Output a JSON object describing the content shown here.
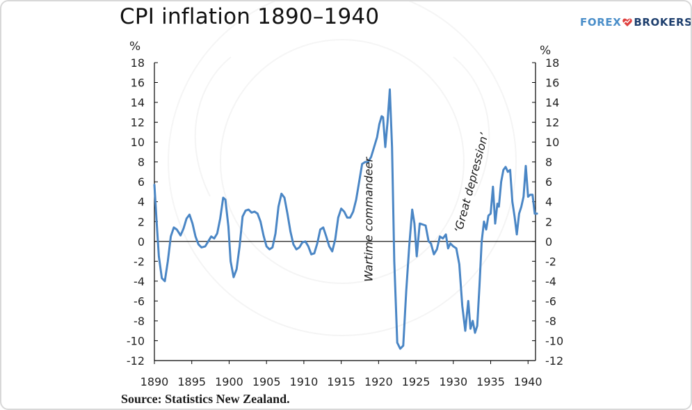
{
  "header": {
    "title": "CPI inflation 1890–1940"
  },
  "logo": {
    "part1": "FOREX",
    "part2": "BROKERS",
    "mark_icon": "heart-chart-icon"
  },
  "footer": {
    "source": "Source: Statistics New Zealand."
  },
  "chart_data": {
    "type": "line",
    "title": "CPI inflation 1890–1940",
    "xlabel": "",
    "ylabel_left": "%",
    "ylabel_right": "%",
    "xlim": [
      1890,
      1941
    ],
    "ylim": [
      -12,
      18
    ],
    "x_ticks": [
      1890,
      1895,
      1900,
      1905,
      1910,
      1915,
      1920,
      1925,
      1930,
      1935,
      1940
    ],
    "y_ticks": [
      -12,
      -10,
      -8,
      -6,
      -4,
      -2,
      0,
      2,
      4,
      6,
      8,
      10,
      12,
      14,
      16,
      18
    ],
    "zero_line": true,
    "grid": false,
    "line_color": "#4a86c5",
    "annotations": [
      {
        "text": "Wartime commandeer",
        "x": 1919.2,
        "y": 2.2,
        "rotation": -90
      },
      {
        "text": "‘Great depression’",
        "x": 1932.9,
        "y": 5.8,
        "rotation": -75
      }
    ],
    "series": [
      {
        "x": [
          1890.0,
          1890.3,
          1890.6,
          1891.0,
          1891.4,
          1891.8,
          1892.2,
          1892.6,
          1893.0,
          1893.5,
          1893.9,
          1894.3,
          1894.7,
          1895.1,
          1895.5,
          1895.9,
          1896.3,
          1896.8,
          1897.2,
          1897.6,
          1898.0,
          1898.4,
          1898.8,
          1899.2,
          1899.5,
          1899.9,
          1900.2,
          1900.6,
          1901.0,
          1901.4,
          1901.8,
          1902.2,
          1902.6,
          1903.0,
          1903.4,
          1903.8,
          1904.2,
          1904.6,
          1905.0,
          1905.4,
          1905.8,
          1906.2,
          1906.6,
          1907.0,
          1907.4,
          1907.8,
          1908.2,
          1908.6,
          1909.0,
          1909.4,
          1909.8,
          1910.2,
          1910.6,
          1911.0,
          1911.4,
          1911.8,
          1912.2,
          1912.6,
          1913.0,
          1913.4,
          1913.8,
          1914.2,
          1914.6,
          1915.0,
          1915.4,
          1915.8,
          1916.2,
          1916.6,
          1917.0,
          1917.4,
          1917.8,
          1918.2,
          1918.6,
          1919.0,
          1919.4,
          1919.8,
          1920.1,
          1920.4,
          1920.6,
          1920.9,
          1921.2,
          1921.5,
          1921.8,
          1922.1,
          1922.5,
          1922.9,
          1923.3,
          1923.7,
          1924.1,
          1924.5,
          1924.8,
          1925.1,
          1925.5,
          1925.9,
          1926.3,
          1926.7,
          1927.0,
          1927.4,
          1927.8,
          1928.2,
          1928.6,
          1929.0,
          1929.3,
          1929.6,
          1930.0,
          1930.4,
          1930.8,
          1931.2,
          1931.6,
          1932.0,
          1932.3,
          1932.6,
          1932.9,
          1933.2,
          1933.5,
          1933.8,
          1934.1,
          1934.4,
          1934.7,
          1935.0,
          1935.3,
          1935.6,
          1935.9,
          1936.1,
          1936.4,
          1936.7,
          1937.0,
          1937.3,
          1937.6,
          1937.9,
          1938.2,
          1938.5,
          1938.8,
          1939.1,
          1939.4,
          1939.7,
          1940.0,
          1940.3,
          1940.6,
          1940.9,
          1941.2
        ],
        "values": [
          5.7,
          2.0,
          -1.5,
          -3.7,
          -4.0,
          -2.0,
          0.5,
          1.4,
          1.2,
          0.6,
          1.3,
          2.3,
          2.7,
          1.8,
          0.5,
          -0.3,
          -0.6,
          -0.5,
          0.0,
          0.5,
          0.3,
          0.8,
          2.3,
          4.4,
          4.2,
          1.5,
          -2.0,
          -3.6,
          -2.8,
          -0.5,
          2.5,
          3.1,
          3.2,
          2.9,
          3.0,
          2.8,
          2.0,
          0.6,
          -0.5,
          -0.8,
          -0.6,
          0.8,
          3.5,
          4.8,
          4.4,
          2.8,
          1.0,
          -0.3,
          -0.8,
          -0.6,
          -0.1,
          0.0,
          -0.5,
          -1.3,
          -1.2,
          -0.2,
          1.2,
          1.4,
          0.5,
          -0.5,
          -1.0,
          0.2,
          2.4,
          3.3,
          3.0,
          2.4,
          2.4,
          3.0,
          4.2,
          6.0,
          7.8,
          8.0,
          8.0,
          8.5,
          9.5,
          10.5,
          11.8,
          12.6,
          12.5,
          9.5,
          12.0,
          15.3,
          9.5,
          -2.0,
          -10.2,
          -10.8,
          -10.5,
          -5.0,
          -0.5,
          3.2,
          1.8,
          -1.5,
          1.8,
          1.7,
          1.6,
          0.0,
          -0.2,
          -1.3,
          -0.8,
          0.5,
          0.3,
          0.7,
          -0.7,
          -0.2,
          -0.5,
          -0.7,
          -2.3,
          -6.5,
          -9.0,
          -6.0,
          -8.8,
          -8.0,
          -9.2,
          -8.5,
          -4.5,
          0.0,
          2.0,
          1.2,
          2.6,
          2.8,
          5.5,
          1.8,
          3.8,
          3.5,
          6.0,
          7.2,
          7.5,
          7.0,
          7.2,
          4.0,
          2.5,
          0.7,
          2.8,
          3.5,
          4.5,
          7.6,
          4.5,
          4.7,
          4.7,
          2.8,
          2.8
        ]
      }
    ]
  }
}
